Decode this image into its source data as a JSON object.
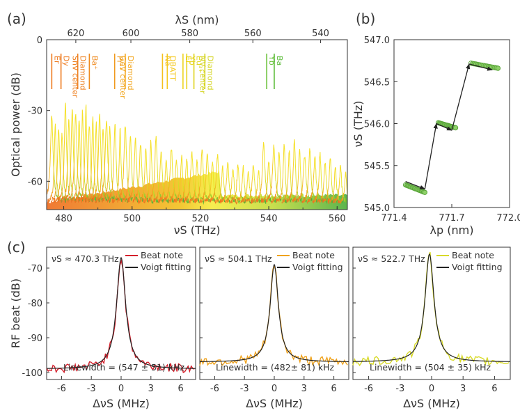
{
  "panel_labels": [
    "(a)",
    "(b)",
    "(c)"
  ],
  "chart_data": [
    {
      "id": "a",
      "type": "area",
      "title": "",
      "xlabel": "νS (THz)",
      "ylabel": "Optical power (dB)",
      "top_xlabel": "λS (nm)",
      "xlim": [
        475,
        563
      ],
      "ylim": [
        -72,
        0
      ],
      "x_ticks": [
        480,
        500,
        520,
        540,
        560
      ],
      "y_ticks": [
        0,
        -30,
        -60
      ],
      "top_ticks_nm": [
        620,
        600,
        580,
        560,
        540
      ],
      "baseline_db": -69,
      "spectra_peaks": [
        {
          "x": 476.5,
          "peak": -32
        },
        {
          "x": 477.5,
          "peak": -36
        },
        {
          "x": 478.5,
          "peak": -37
        },
        {
          "x": 479.5,
          "peak": -40
        },
        {
          "x": 480.5,
          "peak": -27
        },
        {
          "x": 481.5,
          "peak": -34
        },
        {
          "x": 482.5,
          "peak": -30
        },
        {
          "x": 483.5,
          "peak": -31
        },
        {
          "x": 484.5,
          "peak": -34
        },
        {
          "x": 485.5,
          "peak": -30
        },
        {
          "x": 486.5,
          "peak": -28
        },
        {
          "x": 487.5,
          "peak": -36
        },
        {
          "x": 488.5,
          "peak": -33
        },
        {
          "x": 489.5,
          "peak": -35
        },
        {
          "x": 490.5,
          "peak": -32
        },
        {
          "x": 491.5,
          "peak": -37
        },
        {
          "x": 492.5,
          "peak": -34
        },
        {
          "x": 493.5,
          "peak": -37
        },
        {
          "x": 495.0,
          "peak": -35
        },
        {
          "x": 496.5,
          "peak": -38
        },
        {
          "x": 498.0,
          "peak": -36
        },
        {
          "x": 499.5,
          "peak": -41
        },
        {
          "x": 501.0,
          "peak": -42
        },
        {
          "x": 502.5,
          "peak": -44
        },
        {
          "x": 504.0,
          "peak": -46
        },
        {
          "x": 505.5,
          "peak": -43
        },
        {
          "x": 507.0,
          "peak": -41
        },
        {
          "x": 508.5,
          "peak": -47
        },
        {
          "x": 510.0,
          "peak": -52
        },
        {
          "x": 511.5,
          "peak": -46
        },
        {
          "x": 513.0,
          "peak": -51
        },
        {
          "x": 514.5,
          "peak": -49
        },
        {
          "x": 516.0,
          "peak": -51
        },
        {
          "x": 517.5,
          "peak": -48
        },
        {
          "x": 519.0,
          "peak": -51
        },
        {
          "x": 520.5,
          "peak": -46
        },
        {
          "x": 522.0,
          "peak": -48
        },
        {
          "x": 523.5,
          "peak": -52
        },
        {
          "x": 525.0,
          "peak": -49
        },
        {
          "x": 526.5,
          "peak": -54
        },
        {
          "x": 528.0,
          "peak": -52
        },
        {
          "x": 529.5,
          "peak": -55
        },
        {
          "x": 531.0,
          "peak": -53
        },
        {
          "x": 532.5,
          "peak": -54
        },
        {
          "x": 534.0,
          "peak": -56
        },
        {
          "x": 535.5,
          "peak": -53
        },
        {
          "x": 537.0,
          "peak": -55
        },
        {
          "x": 538.5,
          "peak": -44
        },
        {
          "x": 540.0,
          "peak": -52
        },
        {
          "x": 541.5,
          "peak": -45
        },
        {
          "x": 543.0,
          "peak": -48
        },
        {
          "x": 544.5,
          "peak": -44
        },
        {
          "x": 546.0,
          "peak": -47
        },
        {
          "x": 547.5,
          "peak": -43
        },
        {
          "x": 549.0,
          "peak": -47
        },
        {
          "x": 550.5,
          "peak": -49
        },
        {
          "x": 552.0,
          "peak": -46
        },
        {
          "x": 553.5,
          "peak": -50
        },
        {
          "x": 555.0,
          "peak": -48
        },
        {
          "x": 556.5,
          "peak": -52
        },
        {
          "x": 558.0,
          "peak": -50
        },
        {
          "x": 559.5,
          "peak": -54
        },
        {
          "x": 561.0,
          "peak": -53
        },
        {
          "x": 562.5,
          "peak": -56
        }
      ],
      "markers": [
        {
          "label": "Er",
          "x": 476.5,
          "color": "#ee7a1e"
        },
        {
          "label": "Dy",
          "x": 479.2,
          "color": "#ee7a1e"
        },
        {
          "label": "Diamond SnV center",
          "x": 484.1,
          "color": "#ee7f1e"
        },
        {
          "label": "Ba⁺",
          "x": 487.5,
          "color": "#ef8a1e"
        },
        {
          "label": "Pr³⁺",
          "x": 494.9,
          "color": "#f09a1e"
        },
        {
          "label": "Diamond GeV center",
          "x": 498.0,
          "color": "#f2a61e"
        },
        {
          "label": "Na",
          "x": 508.9,
          "color": "#f4c01e"
        },
        {
          "label": "DBATT",
          "x": 510.3,
          "color": "#f4c81e"
        },
        {
          "label": "Er",
          "x": 514.9,
          "color": "#eed41e"
        },
        {
          "label": "Yb",
          "x": 516.0,
          "color": "#e8d41e"
        },
        {
          "label": "Eu³⁺",
          "x": 518.1,
          "color": "#e0d41e"
        },
        {
          "label": "Diamond NV center",
          "x": 521.3,
          "color": "#d4d41e"
        },
        {
          "label": "Yb",
          "x": 539.4,
          "color": "#6ac23a"
        },
        {
          "label": "Ba",
          "x": 541.6,
          "color": "#5cbc3a"
        }
      ]
    },
    {
      "id": "b",
      "type": "scatter",
      "title": "",
      "xlabel": "λp (nm)",
      "ylabel": "νS (THz)",
      "xlim": [
        771.4,
        772.0
      ],
      "ylim": [
        545.0,
        547.0
      ],
      "x_ticks": [
        771.4,
        771.7,
        772.0
      ],
      "y_ticks": [
        545.0,
        545.5,
        546.0,
        546.5,
        547.0
      ],
      "series": [
        {
          "x_start": 771.46,
          "x_end": 771.56,
          "y_start": 545.27,
          "y_end": 545.18
        },
        {
          "x_start": 771.63,
          "x_end": 771.72,
          "y_start": 546.01,
          "y_end": 545.95
        },
        {
          "x_start": 771.8,
          "x_end": 771.94,
          "y_start": 546.72,
          "y_end": 546.66
        }
      ],
      "arrows": [
        [
          [
            771.46,
            545.31
          ],
          [
            771.56,
            545.22
          ]
        ],
        [
          [
            771.56,
            545.22
          ],
          [
            771.62,
            546.0
          ]
        ],
        [
          [
            771.62,
            546.0
          ],
          [
            771.7,
            545.92
          ]
        ],
        [
          [
            771.7,
            545.92
          ],
          [
            771.79,
            546.71
          ]
        ],
        [
          [
            771.79,
            546.71
          ],
          [
            771.91,
            546.64
          ]
        ]
      ]
    },
    {
      "id": "c1",
      "type": "line",
      "title": "νS ≈ 470.3 THz",
      "xlabel": "ΔνS (MHz)",
      "ylabel": "RF beat (dB)",
      "xlim": [
        -7.5,
        7.5
      ],
      "ylim": [
        -102,
        -64
      ],
      "x_ticks": [
        -6,
        -3,
        0,
        3,
        6
      ],
      "y_ticks": [
        -70,
        -80,
        -90,
        -100
      ],
      "linewidth_text": "Linewidth = (547 ± 51) kHz",
      "beat_color": "#d4202c",
      "fit": {
        "x0": 0.0,
        "peak": -67.0,
        "floor": -99.0,
        "width": 0.55
      },
      "series": [
        {
          "name": "Beat note"
        },
        {
          "name": "Voigt fitting"
        }
      ]
    },
    {
      "id": "c2",
      "type": "line",
      "title": "νS ≈ 504.1 THz",
      "xlabel": "ΔνS (MHz)",
      "ylabel": "",
      "xlim": [
        -7.5,
        7.5
      ],
      "ylim": [
        -102,
        -64
      ],
      "x_ticks": [
        -6,
        -3,
        0,
        3,
        6
      ],
      "y_ticks": [
        -70,
        -80,
        -90,
        -100
      ],
      "linewidth_text": "Linewidth = (482± 81) kHz",
      "beat_color": "#f0a31e",
      "fit": {
        "x0": 0.0,
        "peak": -69.0,
        "floor": -97.0,
        "width": 0.5
      },
      "series": [
        {
          "name": "Beat note"
        },
        {
          "name": "Voigt fitting"
        }
      ]
    },
    {
      "id": "c3",
      "type": "line",
      "title": "νS ≈ 522.7 THz",
      "xlabel": "ΔνS (MHz)",
      "ylabel": "",
      "xlim": [
        -7.5,
        7.5
      ],
      "ylim": [
        -102,
        -64
      ],
      "x_ticks": [
        -6,
        -3,
        0,
        3,
        6
      ],
      "y_ticks": [
        -70,
        -80,
        -90,
        -100
      ],
      "linewidth_text": "Linewidth = (504 ± 35) kHz",
      "beat_color": "#d8da2a",
      "fit": {
        "x0": -0.2,
        "peak": -66.0,
        "floor": -97.0,
        "width": 0.52
      },
      "series": [
        {
          "name": "Beat note"
        },
        {
          "name": "Voigt fitting"
        }
      ]
    }
  ]
}
